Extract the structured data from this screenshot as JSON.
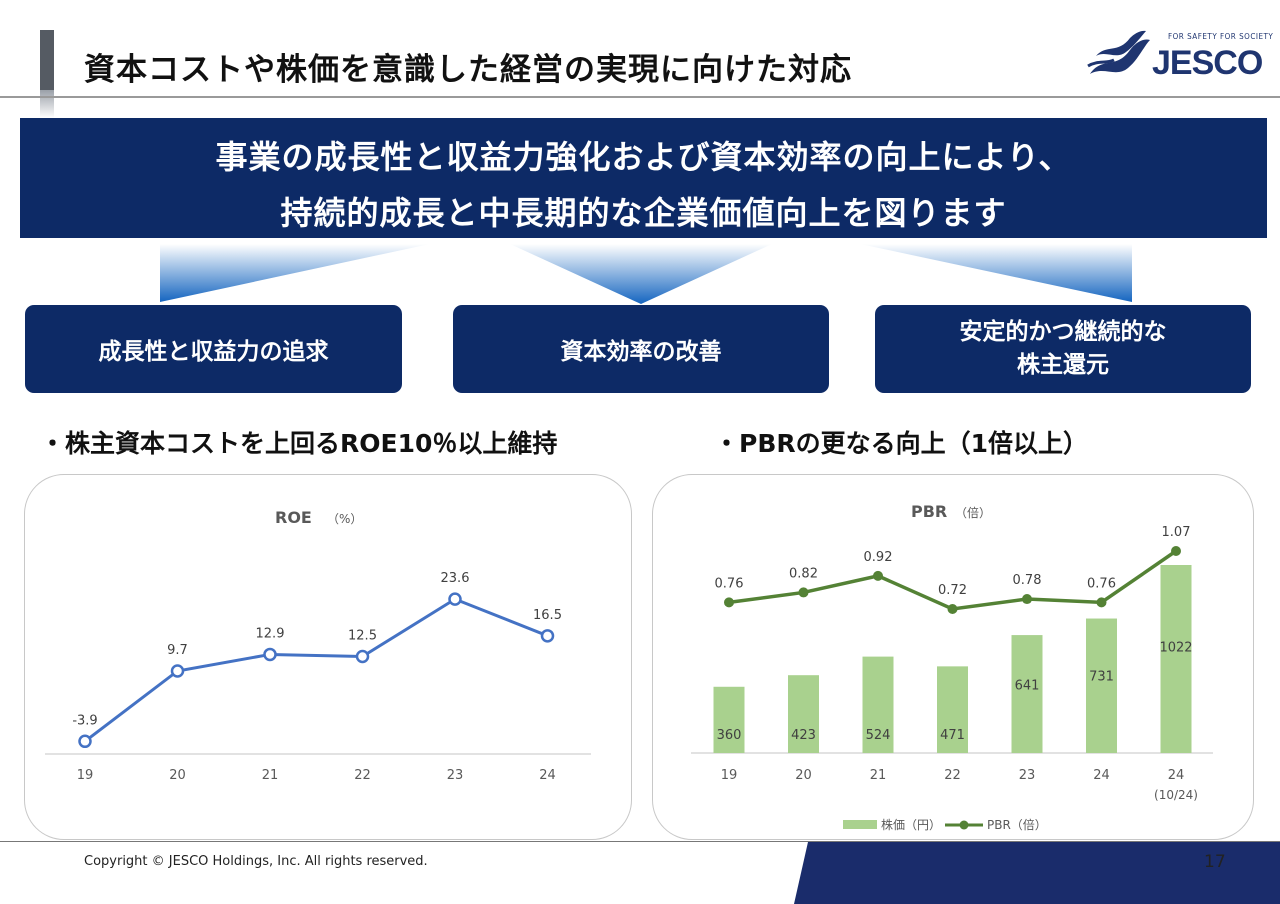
{
  "page": {
    "title": "資本コストや株価を意識した経営の実現に向けた対応",
    "number": "17",
    "copyright": "Copyright © JESCO Holdings, Inc. All rights reserved."
  },
  "logo": {
    "tagline": "FOR SAFETY FOR SOCIETY",
    "word": "JESCO"
  },
  "banner": {
    "line1": "事業の成長性と収益力強化および資本効率の向上により、",
    "line2": "持続的成長と中長期的な企業価値向上を図ります"
  },
  "pillars": [
    {
      "lines": [
        "成長性と収益力の追求"
      ]
    },
    {
      "lines": [
        "資本効率の改善"
      ]
    },
    {
      "lines": [
        "安定的かつ継続的な",
        "株主還元"
      ]
    }
  ],
  "bullets": {
    "left": "・株主資本コストを上回るROE10％以上維持",
    "right": "・PBRの更なる向上（1倍以上）"
  },
  "colors": {
    "navy": "#0d2a66",
    "roe_line": "#4472c4",
    "pbr_line": "#548235",
    "bar": "#a9d18e"
  },
  "chart_data": [
    {
      "type": "line",
      "title": "ROE",
      "unit": "（%）",
      "categories": [
        "19",
        "20",
        "21",
        "22",
        "23",
        "24"
      ],
      "series": [
        {
          "values": [
            -3.9,
            9.7,
            12.9,
            12.5,
            23.6,
            16.5
          ]
        }
      ],
      "data_labels": [
        "-3.9",
        "9.7",
        "12.9",
        "12.5",
        "23.6",
        "16.5"
      ],
      "ylim": [
        -5,
        36
      ],
      "grid": false
    },
    {
      "type": "bar+line",
      "title": "PBR",
      "unit": "（倍）",
      "categories": [
        "19",
        "20",
        "21",
        "22",
        "23",
        "24",
        "24"
      ],
      "category_sublabels": [
        "",
        "",
        "",
        "",
        "",
        "",
        "(10/24)"
      ],
      "series": [
        {
          "name": "株価（円）",
          "type": "bar",
          "values": [
            360,
            423,
            524,
            471,
            641,
            731,
            1022
          ]
        },
        {
          "name": "PBR（倍）",
          "type": "line",
          "values": [
            0.76,
            0.82,
            0.92,
            0.72,
            0.78,
            0.76,
            1.07
          ]
        }
      ],
      "bar_labels": [
        "360",
        "423",
        "524",
        "471",
        "641",
        "731",
        "1022"
      ],
      "line_labels": [
        "0.76",
        "0.82",
        "0.92",
        "0.72",
        "0.78",
        "0.76",
        "1.07"
      ],
      "legend_position": "bottom",
      "grid": false
    }
  ]
}
